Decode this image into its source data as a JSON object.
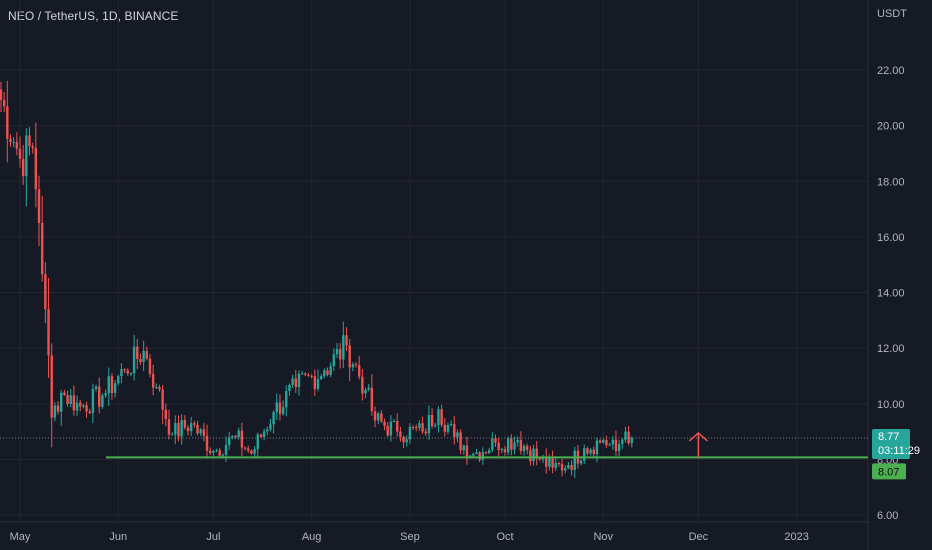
{
  "header": {
    "symbol": "NEO / TetherUS, 1D, BINANCE",
    "currency": "USDT"
  },
  "colors": {
    "background": "#161a25",
    "grid": "#232632",
    "up": "#26a69a",
    "down": "#ef5350",
    "support_line": "#4caf50",
    "arrow": "#ef5350",
    "text": "#b2b5be"
  },
  "price_badges": {
    "last_price": "8.77",
    "countdown": "03:11:29",
    "support_price": "8.07"
  },
  "annotations": {
    "support_level": 8.07,
    "arrow": {
      "date": "Dec",
      "from": 8.07,
      "to": 8.95,
      "direction": "up"
    }
  },
  "chart_data": {
    "type": "candlestick",
    "title": "NEO / TetherUS, 1D, BINANCE",
    "ylabel": "USDT",
    "ylim": [
      5.75,
      24.25
    ],
    "y_ticks": [
      "6.00",
      "8.00",
      "10.00",
      "12.00",
      "14.00",
      "16.00",
      "18.00",
      "20.00",
      "22.00"
    ],
    "x_ticks": [
      "May",
      "Jun",
      "Jul",
      "Aug",
      "Sep",
      "Oct",
      "Nov",
      "Dec",
      "2023"
    ],
    "grid": true,
    "ohlc_key_points": [
      {
        "date": "Apr 24",
        "close": 21.3
      },
      {
        "date": "May 1",
        "close": 18.8
      },
      {
        "date": "May 5",
        "close": 19.2
      },
      {
        "date": "May 7",
        "close": 16.5
      },
      {
        "date": "May 9",
        "close": 13.4
      },
      {
        "date": "May 11",
        "close": 9.5
      },
      {
        "date": "May 14",
        "close": 10.4
      },
      {
        "date": "May 20",
        "close": 9.9
      },
      {
        "date": "May 27",
        "close": 10.3
      },
      {
        "date": "Jun 3",
        "close": 11.2
      },
      {
        "date": "Jun 9",
        "close": 11.9
      },
      {
        "date": "Jun 13",
        "close": 10.6
      },
      {
        "date": "Jun 18",
        "close": 8.9
      },
      {
        "date": "Jun 24",
        "close": 9.3
      },
      {
        "date": "Jul 1",
        "close": 8.3
      },
      {
        "date": "Jul 8",
        "close": 8.8
      },
      {
        "date": "Jul 13",
        "close": 8.2
      },
      {
        "date": "Jul 20",
        "close": 9.7
      },
      {
        "date": "Jul 27",
        "close": 10.6
      },
      {
        "date": "Aug 5",
        "close": 11.2
      },
      {
        "date": "Aug 12",
        "close": 12.1
      },
      {
        "date": "Aug 18",
        "close": 10.5
      },
      {
        "date": "Aug 21",
        "close": 9.4
      },
      {
        "date": "Aug 28",
        "close": 9.0
      },
      {
        "date": "Sep 5",
        "close": 9.0
      },
      {
        "date": "Sep 10",
        "close": 9.8
      },
      {
        "date": "Sep 15",
        "close": 8.8
      },
      {
        "date": "Sep 21",
        "close": 8.2
      },
      {
        "date": "Sep 28",
        "close": 8.6
      },
      {
        "date": "Oct 5",
        "close": 8.7
      },
      {
        "date": "Oct 12",
        "close": 8.0
      },
      {
        "date": "Oct 16",
        "close": 7.7
      },
      {
        "date": "Oct 21",
        "close": 7.8
      },
      {
        "date": "Oct 26",
        "close": 8.4
      },
      {
        "date": "Nov 1",
        "close": 8.7
      },
      {
        "date": "Nov 5",
        "close": 8.3
      },
      {
        "date": "Nov 8",
        "close": 9.0
      },
      {
        "date": "Nov 10",
        "close": 8.77
      }
    ]
  }
}
